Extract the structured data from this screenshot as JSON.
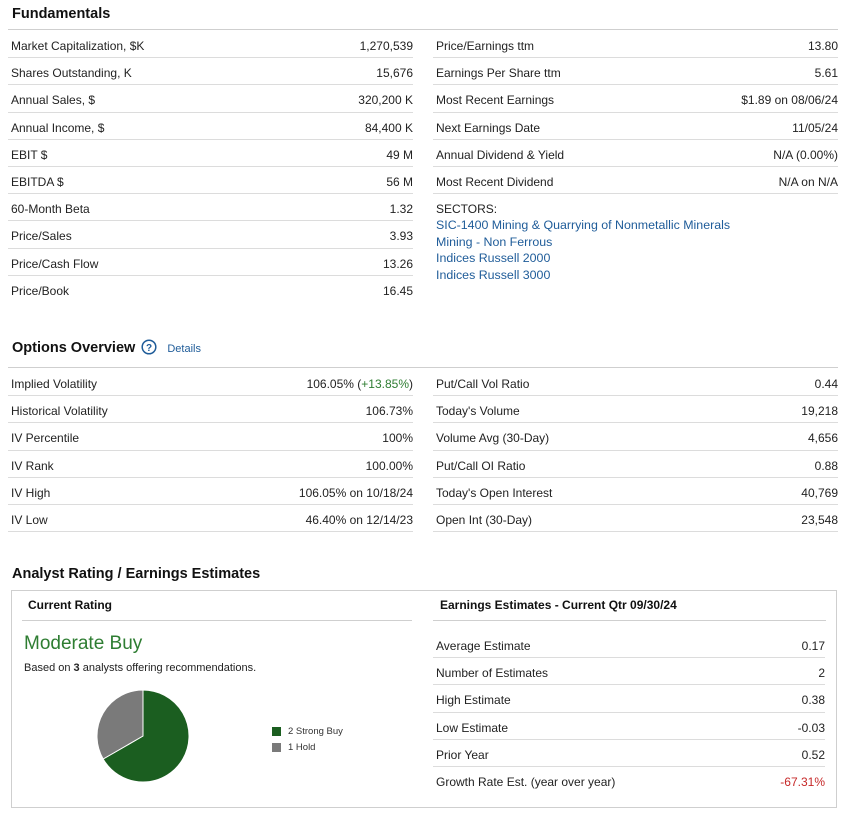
{
  "fundamentals": {
    "title": "Fundamentals",
    "left": [
      {
        "label": "Market Capitalization, $K",
        "value": "1,270,539"
      },
      {
        "label": "Shares Outstanding, K",
        "value": "15,676"
      },
      {
        "label": "Annual Sales, $",
        "value": "320,200 K"
      },
      {
        "label": "Annual Income, $",
        "value": "84,400 K"
      },
      {
        "label": "EBIT $",
        "value": "49 M"
      },
      {
        "label": "EBITDA $",
        "value": "56 M"
      },
      {
        "label": "60-Month Beta",
        "value": "1.32"
      },
      {
        "label": "Price/Sales",
        "value": "3.93"
      },
      {
        "label": "Price/Cash Flow",
        "value": "13.26"
      },
      {
        "label": "Price/Book",
        "value": "16.45"
      }
    ],
    "right": [
      {
        "label": "Price/Earnings ttm",
        "value": "13.80"
      },
      {
        "label": "Earnings Per Share ttm",
        "value": "5.61"
      },
      {
        "label": "Most Recent Earnings",
        "value": "$1.89 on 08/06/24"
      },
      {
        "label": "Next Earnings Date",
        "value": "11/05/24"
      },
      {
        "label": "Annual Dividend & Yield",
        "value": "N/A (0.00%)"
      },
      {
        "label": "Most Recent Dividend",
        "value": "N/A on N/A"
      }
    ],
    "sectors_label": "SECTORS:",
    "sectors": [
      "SIC-1400 Mining & Quarrying of Nonmetallic Minerals",
      "Mining - Non Ferrous",
      "Indices Russell 2000",
      "Indices Russell 3000"
    ]
  },
  "options": {
    "title": "Options Overview",
    "details_label": "Details",
    "help_icon": "question-circle-icon",
    "implied_label": "Implied Volatility",
    "implied_value": "106.05% (",
    "implied_change": "+13.85%",
    "implied_close": ")",
    "left": [
      {
        "label": "Historical Volatility",
        "value": "106.73%"
      },
      {
        "label": "IV Percentile",
        "value": "100%"
      },
      {
        "label": "IV Rank",
        "value": "100.00%"
      },
      {
        "label": "IV High",
        "value": "106.05% on 10/18/24"
      },
      {
        "label": "IV Low",
        "value": "46.40% on 12/14/23"
      }
    ],
    "right": [
      {
        "label": "Put/Call Vol Ratio",
        "value": "0.44"
      },
      {
        "label": "Today's Volume",
        "value": "19,218"
      },
      {
        "label": "Volume Avg (30-Day)",
        "value": "4,656"
      },
      {
        "label": "Put/Call OI Ratio",
        "value": "0.88"
      },
      {
        "label": "Today's Open Interest",
        "value": "40,769"
      },
      {
        "label": "Open Int (30-Day)",
        "value": "23,548"
      }
    ]
  },
  "analyst": {
    "title": "Analyst Rating / Earnings Estimates",
    "current_rating_header": "Current Rating",
    "rating": "Moderate Buy",
    "based_prefix": "Based on ",
    "analyst_count": "3",
    "based_suffix": " analysts offering recommendations.",
    "legend": [
      {
        "label": "2 Strong Buy",
        "color": "#1b5e20",
        "count": 2
      },
      {
        "label": "1 Hold",
        "color": "#7a7a7a",
        "count": 1
      }
    ],
    "estimates_header": "Earnings Estimates - Current Qtr 09/30/24",
    "estimates": [
      {
        "label": "Average Estimate",
        "value": "0.17"
      },
      {
        "label": "Number of Estimates",
        "value": "2"
      },
      {
        "label": "High Estimate",
        "value": "0.38"
      },
      {
        "label": "Low Estimate",
        "value": "-0.03"
      },
      {
        "label": "Prior Year",
        "value": "0.52"
      }
    ],
    "growth_label": "Growth Rate Est. (year over year)",
    "growth_value": "-67.31%",
    "colors": {
      "rating_green": "#2e7d32",
      "negative_red": "#c62828",
      "link_blue": "#1f5c99"
    }
  }
}
